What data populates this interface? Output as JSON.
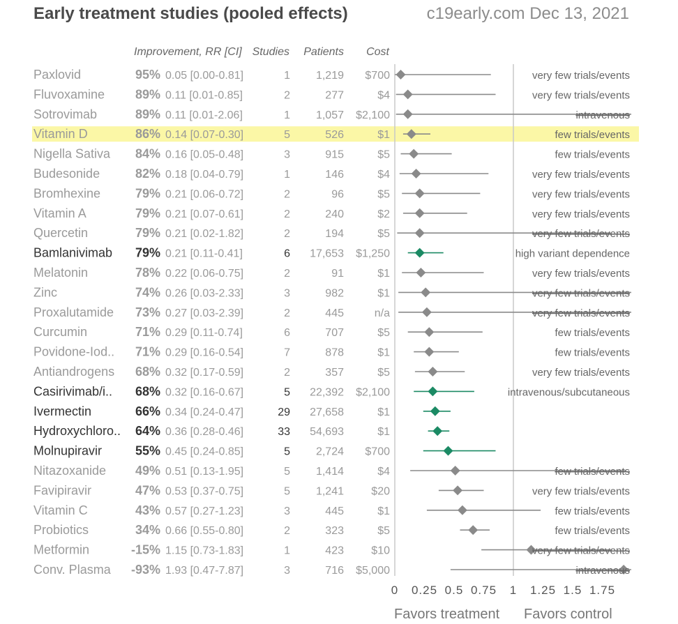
{
  "colors": {
    "gray_text": "#9a9a9a",
    "dark_text": "#333333",
    "gray_mark": "#8a8a8a",
    "green_mark": "#1b8a64",
    "highlight": "#fbf7a6",
    "axis": "#c8c8c8"
  },
  "chart_data": {
    "type": "forest",
    "title": "Early treatment studies (pooled effects)",
    "subtitle": "c19early.com Dec 13, 2021",
    "columns": {
      "improvement": "Improvement, RR [CI]",
      "studies": "Studies",
      "patients": "Patients",
      "cost": "Cost"
    },
    "xlim": [
      0,
      2.0
    ],
    "ticks": [
      0,
      0.25,
      0.5,
      0.75,
      1,
      1.25,
      1.5,
      1.75
    ],
    "tick_labels": [
      "0",
      "0.25",
      "0.5",
      "0.75",
      "1",
      "1.25",
      "1.5",
      "1.75"
    ],
    "reference_line": 1,
    "xlabel_left": "Favors treatment",
    "xlabel_right": "Favors control",
    "rows": [
      {
        "name": "Paxlovid",
        "improvement": "95%",
        "rr_text": "0.05 [0.00-0.81]",
        "rr": 0.05,
        "lo": 0.0,
        "hi": 0.81,
        "studies": "1",
        "patients": "1,219",
        "cost": "$700",
        "note": "very few trials/events",
        "strike": false,
        "highlight": false,
        "bold": false,
        "green": false
      },
      {
        "name": "Fluvoxamine",
        "improvement": "89%",
        "rr_text": "0.11 [0.01-0.85]",
        "rr": 0.11,
        "lo": 0.01,
        "hi": 0.85,
        "studies": "2",
        "patients": "277",
        "cost": "$4",
        "note": "very few trials/events",
        "strike": false,
        "highlight": false,
        "bold": false,
        "green": false
      },
      {
        "name": "Sotrovimab",
        "improvement": "89%",
        "rr_text": "0.11 [0.01-2.06]",
        "rr": 0.11,
        "lo": 0.01,
        "hi": 2.06,
        "studies": "1",
        "patients": "1,057",
        "cost": "$2,100",
        "note": "intravenous",
        "strike": true,
        "highlight": false,
        "bold": false,
        "green": false
      },
      {
        "name": "Vitamin D",
        "improvement": "86%",
        "rr_text": "0.14 [0.07-0.30]",
        "rr": 0.14,
        "lo": 0.07,
        "hi": 0.3,
        "studies": "5",
        "patients": "526",
        "cost": "$1",
        "note": "few trials/events",
        "strike": false,
        "highlight": true,
        "bold": false,
        "green": false
      },
      {
        "name": "Nigella Sativa",
        "improvement": "84%",
        "rr_text": "0.16 [0.05-0.48]",
        "rr": 0.16,
        "lo": 0.05,
        "hi": 0.48,
        "studies": "3",
        "patients": "915",
        "cost": "$5",
        "note": "few trials/events",
        "strike": false,
        "highlight": false,
        "bold": false,
        "green": false
      },
      {
        "name": "Budesonide",
        "improvement": "82%",
        "rr_text": "0.18 [0.04-0.79]",
        "rr": 0.18,
        "lo": 0.04,
        "hi": 0.79,
        "studies": "1",
        "patients": "146",
        "cost": "$4",
        "note": "very few trials/events",
        "strike": false,
        "highlight": false,
        "bold": false,
        "green": false
      },
      {
        "name": "Bromhexine",
        "improvement": "79%",
        "rr_text": "0.21 [0.06-0.72]",
        "rr": 0.21,
        "lo": 0.06,
        "hi": 0.72,
        "studies": "2",
        "patients": "96",
        "cost": "$5",
        "note": "very few trials/events",
        "strike": false,
        "highlight": false,
        "bold": false,
        "green": false
      },
      {
        "name": "Vitamin A",
        "improvement": "79%",
        "rr_text": "0.21 [0.07-0.61]",
        "rr": 0.21,
        "lo": 0.07,
        "hi": 0.61,
        "studies": "2",
        "patients": "240",
        "cost": "$2",
        "note": "very few trials/events",
        "strike": false,
        "highlight": false,
        "bold": false,
        "green": false
      },
      {
        "name": "Quercetin",
        "improvement": "79%",
        "rr_text": "0.21 [0.02-1.82]",
        "rr": 0.21,
        "lo": 0.02,
        "hi": 1.82,
        "studies": "2",
        "patients": "194",
        "cost": "$5",
        "note": "very few trials/events",
        "strike": true,
        "highlight": false,
        "bold": false,
        "green": false
      },
      {
        "name": "Bamlanivimab",
        "improvement": "79%",
        "rr_text": "0.21 [0.11-0.41]",
        "rr": 0.21,
        "lo": 0.11,
        "hi": 0.41,
        "studies": "6",
        "patients": "17,653",
        "cost": "$1,250",
        "note": "high variant dependence",
        "strike": false,
        "highlight": false,
        "bold": true,
        "green": true
      },
      {
        "name": "Melatonin",
        "improvement": "78%",
        "rr_text": "0.22 [0.06-0.75]",
        "rr": 0.22,
        "lo": 0.06,
        "hi": 0.75,
        "studies": "2",
        "patients": "91",
        "cost": "$1",
        "note": "very few trials/events",
        "strike": false,
        "highlight": false,
        "bold": false,
        "green": false
      },
      {
        "name": "Zinc",
        "improvement": "74%",
        "rr_text": "0.26 [0.03-2.33]",
        "rr": 0.26,
        "lo": 0.03,
        "hi": 2.33,
        "studies": "3",
        "patients": "982",
        "cost": "$1",
        "note": "very few trials/events",
        "strike": true,
        "highlight": false,
        "bold": false,
        "green": false
      },
      {
        "name": "Proxalutamide",
        "improvement": "73%",
        "rr_text": "0.27 [0.03-2.39]",
        "rr": 0.27,
        "lo": 0.03,
        "hi": 2.39,
        "studies": "2",
        "patients": "445",
        "cost": "n/a",
        "note": "very few trials/events",
        "strike": true,
        "highlight": false,
        "bold": false,
        "green": false
      },
      {
        "name": "Curcumin",
        "improvement": "71%",
        "rr_text": "0.29 [0.11-0.74]",
        "rr": 0.29,
        "lo": 0.11,
        "hi": 0.74,
        "studies": "6",
        "patients": "707",
        "cost": "$5",
        "note": "few trials/events",
        "strike": false,
        "highlight": false,
        "bold": false,
        "green": false
      },
      {
        "name": "Povidone-Iod..",
        "improvement": "71%",
        "rr_text": "0.29 [0.16-0.54]",
        "rr": 0.29,
        "lo": 0.16,
        "hi": 0.54,
        "studies": "7",
        "patients": "878",
        "cost": "$1",
        "note": "few trials/events",
        "strike": false,
        "highlight": false,
        "bold": false,
        "green": false
      },
      {
        "name": "Antiandrogens",
        "improvement": "68%",
        "rr_text": "0.32 [0.17-0.59]",
        "rr": 0.32,
        "lo": 0.17,
        "hi": 0.59,
        "studies": "2",
        "patients": "357",
        "cost": "$5",
        "note": "very few trials/events",
        "strike": false,
        "highlight": false,
        "bold": false,
        "green": false
      },
      {
        "name": "Casirivimab/i..",
        "improvement": "68%",
        "rr_text": "0.32 [0.16-0.67]",
        "rr": 0.32,
        "lo": 0.16,
        "hi": 0.67,
        "studies": "5",
        "patients": "22,392",
        "cost": "$2,100",
        "note": "intravenous/subcutaneous",
        "strike": false,
        "highlight": false,
        "bold": true,
        "green": true
      },
      {
        "name": "Ivermectin",
        "improvement": "66%",
        "rr_text": "0.34 [0.24-0.47]",
        "rr": 0.34,
        "lo": 0.24,
        "hi": 0.47,
        "studies": "29",
        "patients": "27,658",
        "cost": "$1",
        "note": "",
        "strike": false,
        "highlight": false,
        "bold": true,
        "green": true
      },
      {
        "name": "Hydroxychloro..",
        "improvement": "64%",
        "rr_text": "0.36 [0.28-0.46]",
        "rr": 0.36,
        "lo": 0.28,
        "hi": 0.46,
        "studies": "33",
        "patients": "54,693",
        "cost": "$1",
        "note": "",
        "strike": false,
        "highlight": false,
        "bold": true,
        "green": true
      },
      {
        "name": "Molnupiravir",
        "improvement": "55%",
        "rr_text": "0.45 [0.24-0.85]",
        "rr": 0.45,
        "lo": 0.24,
        "hi": 0.85,
        "studies": "5",
        "patients": "2,724",
        "cost": "$700",
        "note": "",
        "strike": false,
        "highlight": false,
        "bold": true,
        "green": true
      },
      {
        "name": "Nitazoxanide",
        "improvement": "49%",
        "rr_text": "0.51 [0.13-1.95]",
        "rr": 0.51,
        "lo": 0.13,
        "hi": 1.95,
        "studies": "5",
        "patients": "1,414",
        "cost": "$4",
        "note": "few trials/events",
        "strike": true,
        "highlight": false,
        "bold": false,
        "green": false
      },
      {
        "name": "Favipiravir",
        "improvement": "47%",
        "rr_text": "0.53 [0.37-0.75]",
        "rr": 0.53,
        "lo": 0.37,
        "hi": 0.75,
        "studies": "5",
        "patients": "1,241",
        "cost": "$20",
        "note": "very few trials/events",
        "strike": false,
        "highlight": false,
        "bold": false,
        "green": false
      },
      {
        "name": "Vitamin C",
        "improvement": "43%",
        "rr_text": "0.57 [0.27-1.23]",
        "rr": 0.57,
        "lo": 0.27,
        "hi": 1.23,
        "studies": "3",
        "patients": "445",
        "cost": "$1",
        "note": "few trials/events",
        "strike": false,
        "highlight": false,
        "bold": false,
        "green": false
      },
      {
        "name": "Probiotics",
        "improvement": "34%",
        "rr_text": "0.66 [0.55-0.80]",
        "rr": 0.66,
        "lo": 0.55,
        "hi": 0.8,
        "studies": "2",
        "patients": "323",
        "cost": "$5",
        "note": "few trials/events",
        "strike": false,
        "highlight": false,
        "bold": false,
        "green": false
      },
      {
        "name": "Metformin",
        "improvement": "-15%",
        "rr_text": "1.15 [0.73-1.83]",
        "rr": 1.15,
        "lo": 0.73,
        "hi": 1.83,
        "studies": "1",
        "patients": "423",
        "cost": "$10",
        "note": "very few trials/events",
        "strike": true,
        "highlight": false,
        "bold": false,
        "green": false
      },
      {
        "name": "Conv. Plasma",
        "improvement": "-93%",
        "rr_text": "1.93 [0.47-7.87]",
        "rr": 1.93,
        "lo": 0.47,
        "hi": 7.87,
        "studies": "3",
        "patients": "716",
        "cost": "$5,000",
        "note": "intravenous",
        "strike": true,
        "highlight": false,
        "bold": false,
        "green": false
      }
    ]
  }
}
